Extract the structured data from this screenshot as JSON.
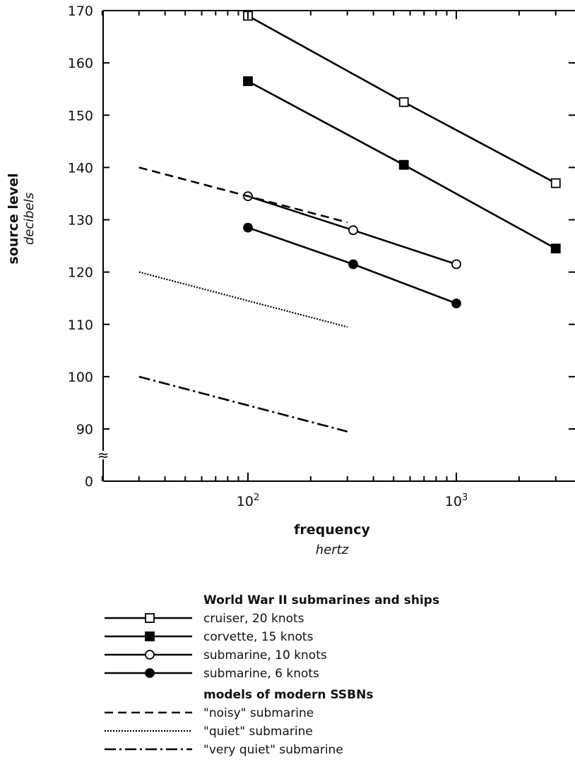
{
  "chart_data": {
    "type": "line",
    "x_scale": "log",
    "xlim": [
      20,
      4000
    ],
    "x_ticks": [
      {
        "value": 100,
        "base": "10",
        "exp": "2"
      },
      {
        "value": 1000,
        "base": "10",
        "exp": "3"
      }
    ],
    "xlabel": "frequency",
    "xunit": "hertz",
    "ylabel": "source level",
    "yunit": "decibels",
    "y_ticks": [
      170,
      160,
      150,
      140,
      130,
      120,
      110,
      100,
      90,
      0
    ],
    "y_axis_break": "≈",
    "y_break_note": "axis break between 0 and 90",
    "grid": false,
    "legend": {
      "placement": "below",
      "groups": [
        {
          "title": "World War II submarines and ships",
          "series_indices": [
            0,
            1,
            2,
            3
          ]
        },
        {
          "title": "models of modern SSBNs",
          "series_indices": [
            4,
            5,
            6
          ]
        }
      ]
    },
    "series": [
      {
        "name": "cruiser, 20 knots",
        "line": "solid",
        "marker": "square-open",
        "points": [
          [
            100,
            169
          ],
          [
            560,
            152.5
          ],
          [
            3000,
            137
          ]
        ]
      },
      {
        "name": "corvette, 15 knots",
        "line": "solid",
        "marker": "square-filled",
        "points": [
          [
            100,
            156.5
          ],
          [
            560,
            140.5
          ],
          [
            3000,
            124.5
          ]
        ]
      },
      {
        "name": "submarine, 10 knots",
        "line": "solid",
        "marker": "circle-open",
        "points": [
          [
            100,
            134.5
          ],
          [
            320,
            128
          ],
          [
            1000,
            121.5
          ]
        ]
      },
      {
        "name": "submarine, 6 knots",
        "line": "solid",
        "marker": "circle-filled",
        "points": [
          [
            100,
            128.5
          ],
          [
            320,
            121.5
          ],
          [
            1000,
            114
          ]
        ]
      },
      {
        "name": "\"noisy\" submarine",
        "line": "dashed",
        "marker": "none",
        "points": [
          [
            30,
            140
          ],
          [
            300,
            129.5
          ]
        ]
      },
      {
        "name": "\"quiet\" submarine",
        "line": "dotted",
        "marker": "none",
        "points": [
          [
            30,
            120
          ],
          [
            300,
            109.5
          ]
        ]
      },
      {
        "name": "\"very quiet\" submarine",
        "line": "dashdot",
        "marker": "none",
        "points": [
          [
            30,
            100
          ],
          [
            300,
            89.5
          ]
        ]
      }
    ]
  }
}
